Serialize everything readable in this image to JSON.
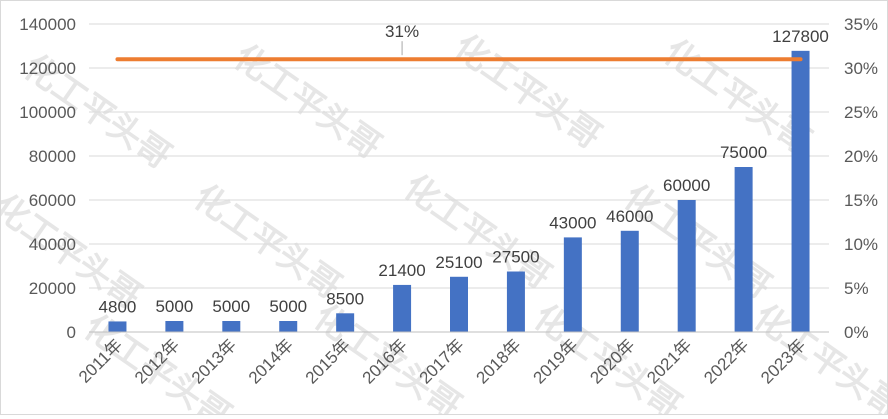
{
  "chart_data": {
    "type": "bar",
    "categories": [
      "2011年",
      "2012年",
      "2013年",
      "2014年",
      "2015年",
      "2016年",
      "2017年",
      "2018年",
      "2019年",
      "2020年",
      "2021年",
      "2022年",
      "2023年"
    ],
    "series": [
      {
        "type": "bar",
        "axis": "left",
        "color": "#4472c4",
        "values": [
          4800,
          5000,
          5000,
          5000,
          8500,
          21400,
          25100,
          27500,
          43000,
          46000,
          60000,
          75000,
          127800
        ]
      },
      {
        "type": "line",
        "axis": "right",
        "color": "#ed7d31",
        "values": [
          0.31,
          0.31,
          0.31,
          0.31,
          0.31,
          0.31,
          0.31,
          0.31,
          0.31,
          0.31,
          0.31,
          0.31,
          0.31
        ],
        "label": "31%"
      }
    ],
    "y_left": {
      "min": 0,
      "max": 140000,
      "step": 20000,
      "ticks": [
        "0",
        "20000",
        "40000",
        "60000",
        "80000",
        "100000",
        "120000",
        "140000"
      ]
    },
    "y_right": {
      "min": 0,
      "max": 0.35,
      "step": 0.05,
      "ticks": [
        "0%",
        "5%",
        "10%",
        "15%",
        "20%",
        "25%",
        "30%",
        "35%"
      ]
    },
    "data_labels": [
      "4800",
      "5000",
      "5000",
      "5000",
      "8500",
      "21400",
      "25100",
      "27500",
      "43000",
      "46000",
      "60000",
      "75000",
      "127800"
    ],
    "grid": true,
    "legend": "none",
    "title": "",
    "xlabel": "",
    "ylabel": ""
  },
  "watermark": "化工平头哥"
}
